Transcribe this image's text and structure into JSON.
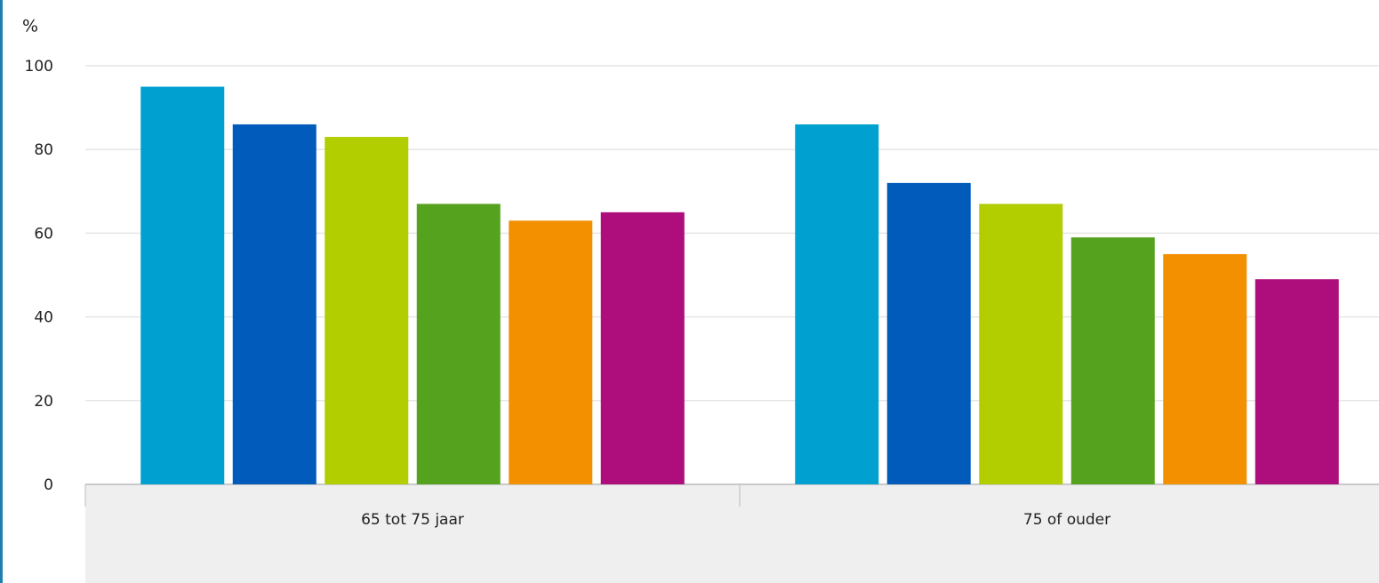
{
  "chart_data": {
    "type": "bar",
    "y_label": "%",
    "categories": [
      "65 tot 75 jaar",
      "75 of ouder"
    ],
    "series": [
      {
        "color": "#00a0d0",
        "values": [
          95,
          86
        ]
      },
      {
        "color": "#005bbb",
        "values": [
          86,
          72
        ]
      },
      {
        "color": "#b2cd00",
        "values": [
          83,
          67
        ]
      },
      {
        "color": "#55a21e",
        "values": [
          67,
          59
        ]
      },
      {
        "color": "#f29000",
        "values": [
          63,
          55
        ]
      },
      {
        "color": "#ad0e7c",
        "values": [
          65,
          49
        ]
      }
    ],
    "ylim": [
      0,
      100
    ],
    "yticks": [
      0,
      20,
      40,
      60,
      80,
      100
    ],
    "grid": true
  }
}
